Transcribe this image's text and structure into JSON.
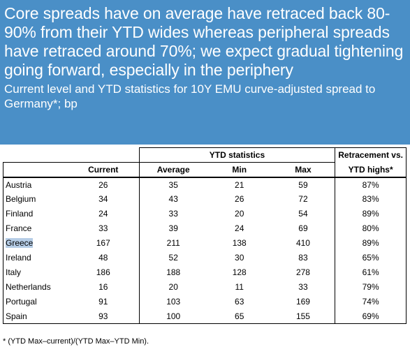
{
  "header": {
    "headline": "Core spreads have on average have retraced back 80-90% from their YTD wides whereas peripheral spreads have retraced around 70%; we expect gradual tightening going forward, especially in the periphery",
    "subtitle": "Current level and YTD statistics for 10Y EMU curve-adjusted spread to Germany*; bp"
  },
  "table": {
    "group_ytd": "YTD statistics",
    "group_retracement": "Retracement vs.",
    "columns": {
      "current": "Current",
      "average": "Average",
      "min": "Min",
      "max": "Max",
      "retracement": "YTD highs*"
    },
    "rows": [
      {
        "country": "Austria",
        "current": "26",
        "average": "35",
        "min": "21",
        "max": "59",
        "retracement": "87%"
      },
      {
        "country": "Belgium",
        "current": "34",
        "average": "43",
        "min": "26",
        "max": "72",
        "retracement": "83%"
      },
      {
        "country": "Finland",
        "current": "24",
        "average": "33",
        "min": "20",
        "max": "54",
        "retracement": "89%"
      },
      {
        "country": "France",
        "current": "33",
        "average": "39",
        "min": "24",
        "max": "69",
        "retracement": "80%"
      },
      {
        "country": "Greece",
        "current": "167",
        "average": "211",
        "min": "138",
        "max": "410",
        "retracement": "89%"
      },
      {
        "country": "Ireland",
        "current": "48",
        "average": "52",
        "min": "30",
        "max": "83",
        "retracement": "65%"
      },
      {
        "country": "Italy",
        "current": "186",
        "average": "188",
        "min": "128",
        "max": "278",
        "retracement": "61%"
      },
      {
        "country": "Netherlands",
        "current": "16",
        "average": "20",
        "min": "11",
        "max": "33",
        "retracement": "79%"
      },
      {
        "country": "Portugal",
        "current": "91",
        "average": "103",
        "min": "63",
        "max": "169",
        "retracement": "74%"
      },
      {
        "country": "Spain",
        "current": "93",
        "average": "100",
        "min": "65",
        "max": "155",
        "retracement": "69%"
      }
    ]
  },
  "footnote": "* (YTD Max–current)/(YTD Max–YTD Min).",
  "colors": {
    "header_bg": "#4a8fc7",
    "highlight": "#b6cde6"
  }
}
